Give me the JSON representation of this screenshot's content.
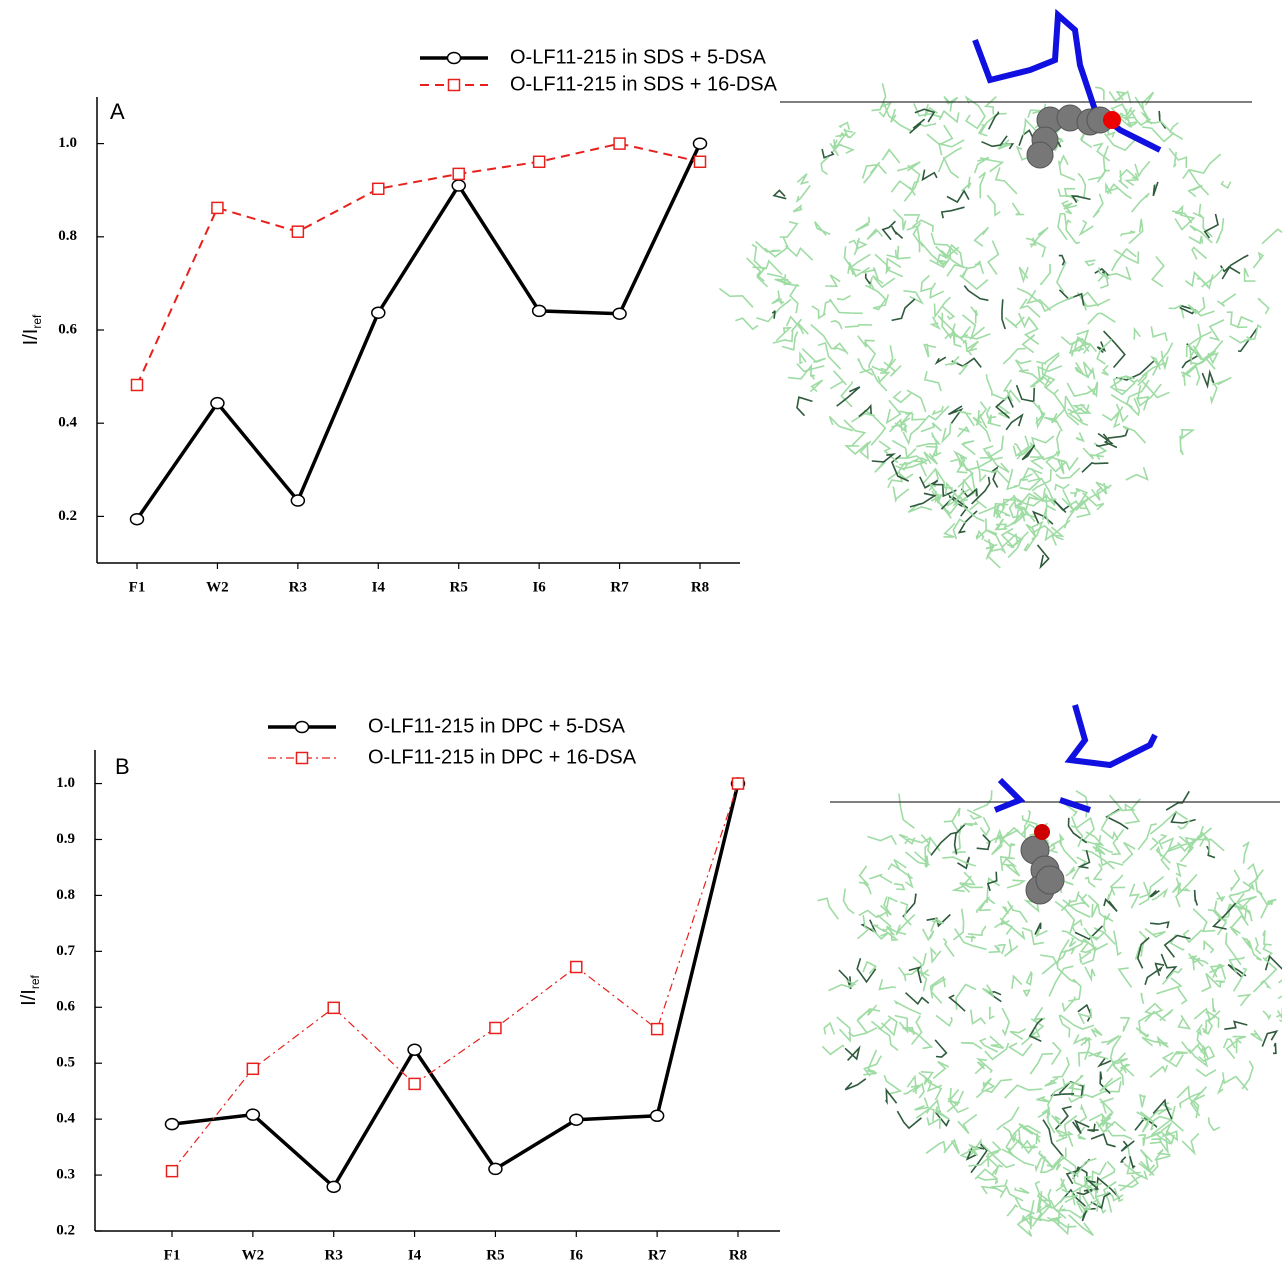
{
  "chart_data": [
    {
      "type": "line",
      "panel_label": "A",
      "y_label": "I/I",
      "y_label_subscript": "ref",
      "categories": [
        "F1",
        "W2",
        "R3",
        "I4",
        "R5",
        "I6",
        "R7",
        "R8"
      ],
      "ylim": [
        0.1,
        1.1
      ],
      "yticks": [
        0.2,
        0.4,
        0.6,
        0.8,
        {
          "value": 1,
          "label": "1.0"
        }
      ],
      "series": [
        {
          "name": "O-LF11-215 in SDS + 5-DSA",
          "color": "#000000",
          "line_style": "solid",
          "marker": "circle",
          "values": [
            0.194,
            0.443,
            0.234,
            0.637,
            0.91,
            0.641,
            0.635,
            1.0
          ]
        },
        {
          "name": "O-LF11-215 in SDS + 16-DSA",
          "color": "#e8201c",
          "line_style": "dashed",
          "marker": "square",
          "values": [
            0.482,
            0.862,
            0.811,
            0.903,
            0.935,
            0.961,
            1.0,
            0.961
          ]
        }
      ]
    },
    {
      "type": "line",
      "panel_label": "B",
      "y_label": "I/I",
      "y_label_subscript": "ref",
      "categories": [
        "F1",
        "W2",
        "R3",
        "I4",
        "R5",
        "I6",
        "R7",
        "R8"
      ],
      "ylim": [
        0.2,
        1.06
      ],
      "yticks": [
        0.2,
        0.3,
        0.4,
        0.5,
        0.6,
        0.7,
        0.8,
        0.9,
        {
          "value": 1,
          "label": "1.0"
        }
      ],
      "series": [
        {
          "name": "O-LF11-215 in DPC + 5-DSA",
          "color": "#000000",
          "line_style": "solid",
          "marker": "circle",
          "values": [
            0.391,
            0.408,
            0.279,
            0.524,
            0.311,
            0.399,
            0.406,
            1.0
          ]
        },
        {
          "name": "O-LF11-215 in DPC + 16-DSA",
          "color": "#e8201c",
          "line_style": "dashdot",
          "marker": "square",
          "values": [
            0.307,
            0.49,
            0.599,
            0.463,
            0.563,
            0.672,
            0.561,
            1.0
          ]
        }
      ]
    }
  ]
}
